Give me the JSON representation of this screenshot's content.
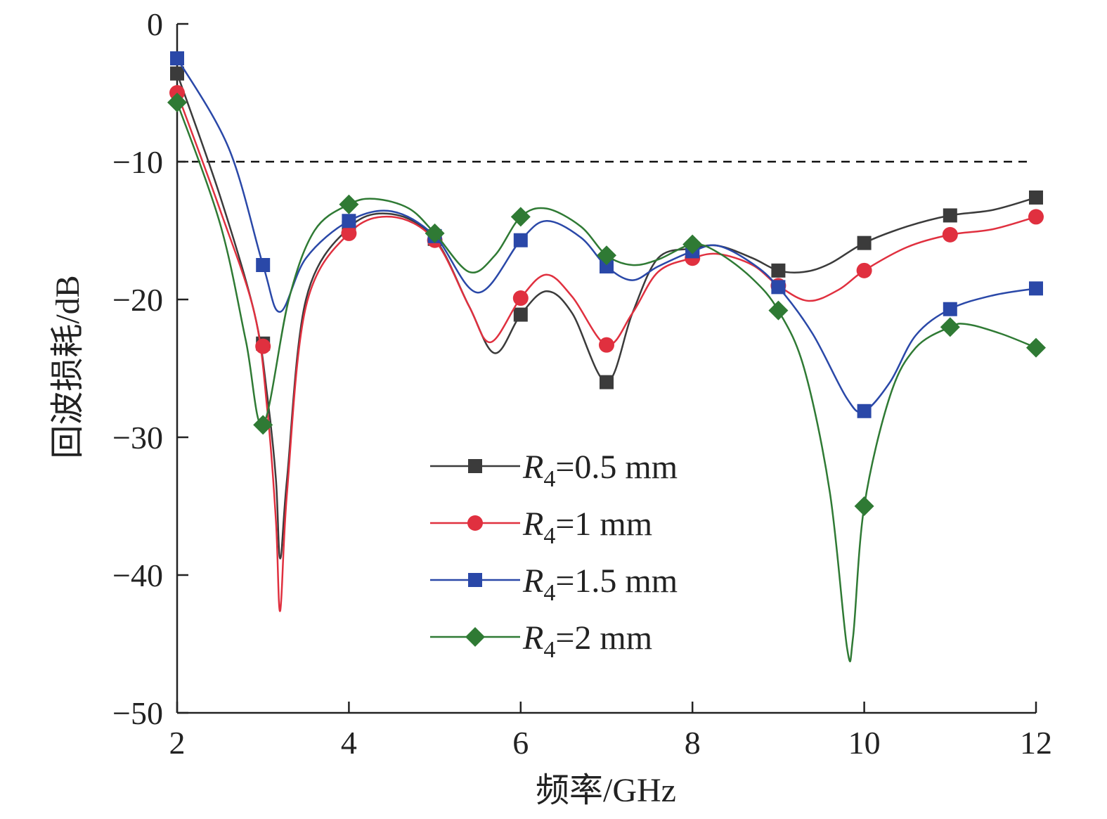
{
  "chart_data": {
    "type": "line",
    "title": "",
    "xlabel": "频率/GHz",
    "ylabel": "回波损耗/dB",
    "xlim": [
      2,
      12
    ],
    "ylim": [
      -50,
      0
    ],
    "xticks": [
      2,
      4,
      6,
      8,
      10,
      12
    ],
    "yticks": [
      0,
      -10,
      -20,
      -30,
      -40,
      -50
    ],
    "xtick_labels": [
      "2",
      "4",
      "6",
      "8",
      "10",
      "12"
    ],
    "ytick_labels": [
      "0",
      "−10",
      "−20",
      "−30",
      "−40",
      "−50"
    ],
    "reference_line": {
      "y": -10,
      "style": "dashed",
      "x_range": [
        2,
        12
      ]
    },
    "legend_position": "center",
    "series": [
      {
        "name": "R4=0.5 mm",
        "label_var": "R",
        "label_sub": "4",
        "label_rest": "=0.5 mm",
        "color": "#3b3b3b",
        "marker": "square",
        "x": [
          2,
          3,
          4,
          5,
          6,
          7,
          8,
          9,
          10,
          11,
          12
        ],
        "values": [
          -3.6,
          -23.2,
          -14.8,
          -15.6,
          -21.1,
          -26.0,
          -16.3,
          -17.9,
          -15.9,
          -13.9,
          -12.6
        ],
        "curve": [
          [
            2,
            -3.6
          ],
          [
            2.5,
            -12.5
          ],
          [
            2.9,
            -21
          ],
          [
            3.05,
            -27
          ],
          [
            3.15,
            -33
          ],
          [
            3.2,
            -38.8
          ],
          [
            3.28,
            -33
          ],
          [
            3.5,
            -20
          ],
          [
            4,
            -14.8
          ],
          [
            4.5,
            -13.8
          ],
          [
            5,
            -15.6
          ],
          [
            5.4,
            -20.5
          ],
          [
            5.7,
            -23.9
          ],
          [
            6,
            -21.1
          ],
          [
            6.3,
            -19.4
          ],
          [
            6.6,
            -21
          ],
          [
            7,
            -26.0
          ],
          [
            7.3,
            -21
          ],
          [
            7.6,
            -17
          ],
          [
            8,
            -16.3
          ],
          [
            8.3,
            -16.1
          ],
          [
            8.7,
            -17
          ],
          [
            9,
            -17.9
          ],
          [
            9.3,
            -18
          ],
          [
            9.6,
            -17.4
          ],
          [
            10,
            -15.9
          ],
          [
            10.5,
            -14.7
          ],
          [
            11,
            -13.9
          ],
          [
            11.5,
            -13.5
          ],
          [
            12,
            -12.6
          ]
        ]
      },
      {
        "name": "R4=1 mm",
        "label_var": "R",
        "label_sub": "4",
        "label_rest": "=1 mm",
        "color": "#e0303f",
        "marker": "circle",
        "x": [
          2,
          3,
          4,
          5,
          6,
          7,
          8,
          9,
          10,
          11,
          12
        ],
        "values": [
          -5.0,
          -23.4,
          -15.2,
          -15.7,
          -19.9,
          -23.3,
          -17.0,
          -19.0,
          -17.9,
          -15.3,
          -14.0
        ],
        "curve": [
          [
            2,
            -5.0
          ],
          [
            2.5,
            -13.5
          ],
          [
            2.9,
            -21
          ],
          [
            3.05,
            -28
          ],
          [
            3.15,
            -36
          ],
          [
            3.2,
            -42.6
          ],
          [
            3.28,
            -34
          ],
          [
            3.5,
            -20.5
          ],
          [
            4,
            -15.2
          ],
          [
            4.5,
            -14.0
          ],
          [
            5,
            -15.7
          ],
          [
            5.4,
            -20.5
          ],
          [
            5.65,
            -23.1
          ],
          [
            6,
            -19.9
          ],
          [
            6.3,
            -18.2
          ],
          [
            6.6,
            -19.8
          ],
          [
            7,
            -23.3
          ],
          [
            7.3,
            -21
          ],
          [
            7.6,
            -18
          ],
          [
            8,
            -17.0
          ],
          [
            8.3,
            -16.7
          ],
          [
            8.7,
            -17.5
          ],
          [
            9,
            -19.0
          ],
          [
            9.35,
            -20.1
          ],
          [
            9.7,
            -19.3
          ],
          [
            10,
            -17.9
          ],
          [
            10.5,
            -16.2
          ],
          [
            11,
            -15.3
          ],
          [
            11.5,
            -14.9
          ],
          [
            12,
            -14.0
          ]
        ]
      },
      {
        "name": "R4=1.5 mm",
        "label_var": "R",
        "label_sub": "4",
        "label_rest": "=1.5 mm",
        "color": "#2a48a8",
        "marker": "square",
        "x": [
          2,
          3,
          4,
          5,
          6,
          7,
          8,
          9,
          10,
          11,
          12
        ],
        "values": [
          -2.5,
          -17.5,
          -14.3,
          -15.4,
          -15.7,
          -17.6,
          -16.5,
          -19.1,
          -28.1,
          -20.7,
          -19.2
        ],
        "curve": [
          [
            2,
            -2.5
          ],
          [
            2.6,
            -9
          ],
          [
            3,
            -17.5
          ],
          [
            3.2,
            -20.9
          ],
          [
            3.5,
            -17
          ],
          [
            4,
            -14.3
          ],
          [
            4.5,
            -13.6
          ],
          [
            5,
            -15.4
          ],
          [
            5.5,
            -19.5
          ],
          [
            6,
            -15.7
          ],
          [
            6.3,
            -14.3
          ],
          [
            6.7,
            -15.5
          ],
          [
            7,
            -17.6
          ],
          [
            7.3,
            -18.6
          ],
          [
            7.6,
            -17.6
          ],
          [
            8,
            -16.5
          ],
          [
            8.3,
            -16.1
          ],
          [
            8.7,
            -17.4
          ],
          [
            9,
            -19.1
          ],
          [
            9.4,
            -22.5
          ],
          [
            9.8,
            -27.2
          ],
          [
            10,
            -28.1
          ],
          [
            10.3,
            -26
          ],
          [
            10.6,
            -22.6
          ],
          [
            11,
            -20.7
          ],
          [
            11.5,
            -19.7
          ],
          [
            12,
            -19.2
          ]
        ]
      },
      {
        "name": "R4=2 mm",
        "label_var": "R",
        "label_sub": "4",
        "label_rest": "=2 mm",
        "color": "#2f7a34",
        "marker": "diamond",
        "x": [
          2,
          3,
          4,
          5,
          6,
          7,
          8,
          9,
          10,
          11,
          12
        ],
        "values": [
          -5.7,
          -29.1,
          -13.1,
          -15.2,
          -14.0,
          -16.8,
          -16.0,
          -20.8,
          -35.0,
          -22.0,
          -23.5
        ],
        "curve": [
          [
            2,
            -5.7
          ],
          [
            2.5,
            -14.5
          ],
          [
            2.8,
            -23
          ],
          [
            3,
            -29.1
          ],
          [
            3.3,
            -20
          ],
          [
            3.6,
            -15
          ],
          [
            4,
            -13.1
          ],
          [
            4.3,
            -12.7
          ],
          [
            4.7,
            -13.4
          ],
          [
            5,
            -15.2
          ],
          [
            5.4,
            -18
          ],
          [
            5.7,
            -16.8
          ],
          [
            6,
            -14.0
          ],
          [
            6.3,
            -13.4
          ],
          [
            6.7,
            -14.7
          ],
          [
            7,
            -16.8
          ],
          [
            7.3,
            -17.5
          ],
          [
            7.6,
            -17.1
          ],
          [
            8,
            -16.0
          ],
          [
            8.3,
            -16.6
          ],
          [
            8.7,
            -18.5
          ],
          [
            9,
            -20.8
          ],
          [
            9.3,
            -25
          ],
          [
            9.6,
            -34
          ],
          [
            9.8,
            -45.3
          ],
          [
            9.87,
            -44.5
          ],
          [
            10,
            -35.0
          ],
          [
            10.3,
            -27
          ],
          [
            10.6,
            -23.5
          ],
          [
            11,
            -22.0
          ],
          [
            11.2,
            -21.8
          ],
          [
            11.6,
            -22.5
          ],
          [
            12,
            -23.5
          ]
        ]
      }
    ]
  }
}
